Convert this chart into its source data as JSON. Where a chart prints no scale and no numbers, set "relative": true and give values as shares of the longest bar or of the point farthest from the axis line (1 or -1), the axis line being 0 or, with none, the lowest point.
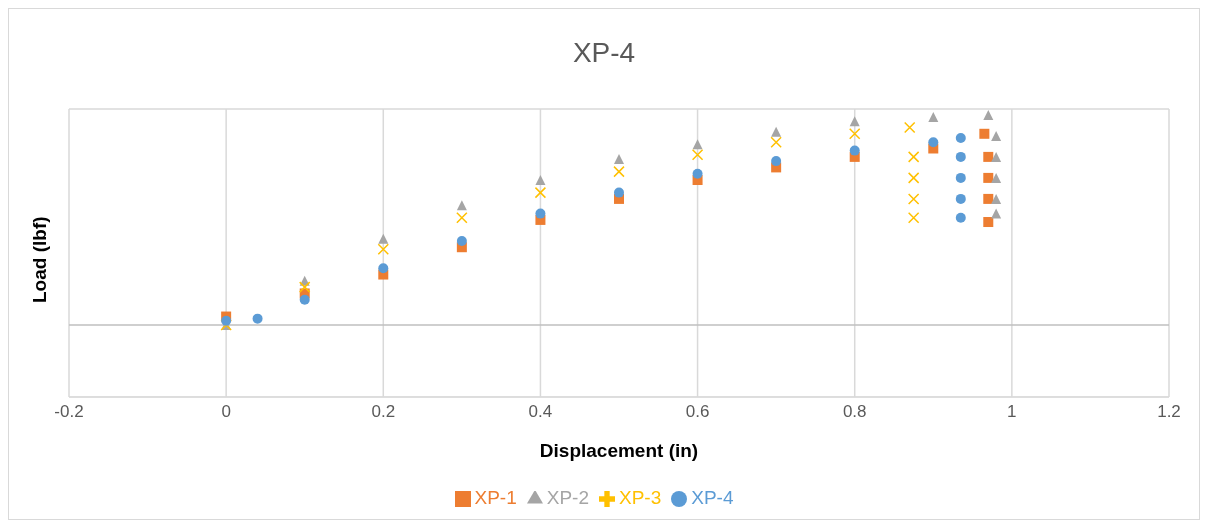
{
  "chart_data": {
    "type": "scatter",
    "title": "XP-4",
    "xlabel": "Displacement (in)",
    "ylabel": "Load (lbf)",
    "relative": true,
    "xlim": [
      -0.2,
      1.2
    ],
    "xticks": [
      -0.2,
      0,
      0.2,
      0.4,
      0.6,
      0.8,
      1,
      1.2
    ],
    "grid": true,
    "legend": "bottom",
    "series": [
      {
        "name": "XP-1",
        "color": "#ed7d31",
        "marker": "square",
        "x": [
          0,
          0.1,
          0.2,
          0.3,
          0.4,
          0.5,
          0.6,
          0.7,
          0.8,
          0.9,
          0.965,
          0.97,
          0.97,
          0.97,
          0.97
        ],
        "values": [
          0.04,
          0.15,
          0.24,
          0.37,
          0.5,
          0.6,
          0.69,
          0.75,
          0.8,
          0.84,
          0.91,
          0.8,
          0.7,
          0.6,
          0.49
        ]
      },
      {
        "name": "XP-2",
        "color": "#a5a5a5",
        "marker": "triangle",
        "x": [
          0,
          0.1,
          0.2,
          0.3,
          0.4,
          0.5,
          0.6,
          0.7,
          0.8,
          0.9,
          0.97,
          0.98,
          0.98,
          0.98,
          0.98,
          0.98
        ],
        "values": [
          0,
          0.21,
          0.41,
          0.57,
          0.69,
          0.79,
          0.86,
          0.92,
          0.97,
          0.99,
          1,
          0.9,
          0.8,
          0.7,
          0.6,
          0.53
        ]
      },
      {
        "name": "XP-3",
        "color": "#ffc000",
        "marker": "cross",
        "x": [
          0,
          0.1,
          0.2,
          0.3,
          0.4,
          0.5,
          0.6,
          0.7,
          0.8,
          0.87,
          0.875,
          0.875,
          0.875,
          0.875
        ],
        "values": [
          0,
          0.18,
          0.36,
          0.51,
          0.63,
          0.73,
          0.81,
          0.87,
          0.91,
          0.94,
          0.8,
          0.7,
          0.6,
          0.51
        ]
      },
      {
        "name": "XP-4",
        "color": "#5b9bd5",
        "marker": "circle",
        "x": [
          0,
          0.04,
          0.1,
          0.2,
          0.3,
          0.4,
          0.5,
          0.6,
          0.7,
          0.8,
          0.9,
          0.935,
          0.935,
          0.935,
          0.935,
          0.935
        ],
        "values": [
          0.02,
          0.03,
          0.12,
          0.27,
          0.4,
          0.53,
          0.63,
          0.72,
          0.78,
          0.83,
          0.87,
          0.89,
          0.8,
          0.7,
          0.6,
          0.51
        ]
      }
    ]
  }
}
